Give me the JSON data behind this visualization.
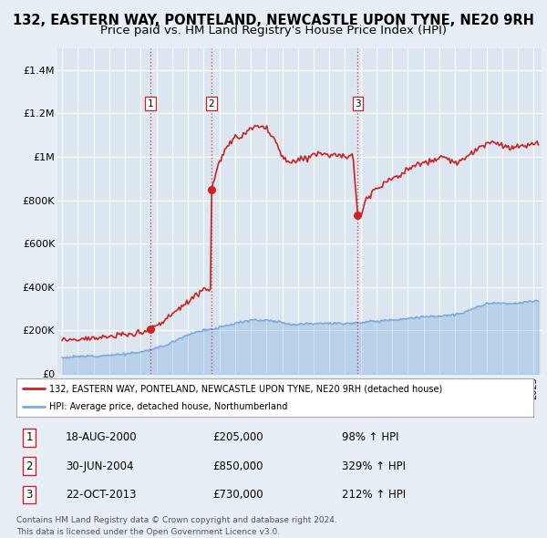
{
  "title": "132, EASTERN WAY, PONTELAND, NEWCASTLE UPON TYNE, NE20 9RH",
  "subtitle": "Price paid vs. HM Land Registry's House Price Index (HPI)",
  "title_fontsize": 10.5,
  "subtitle_fontsize": 9.5,
  "ylim": [
    0,
    1500000
  ],
  "yticks": [
    0,
    200000,
    400000,
    600000,
    800000,
    1000000,
    1200000,
    1400000
  ],
  "ytick_labels": [
    "£0",
    "£200K",
    "£400K",
    "£600K",
    "£800K",
    "£1M",
    "£1.2M",
    "£1.4M"
  ],
  "xlim_start": 1994.7,
  "xlim_end": 2025.5,
  "hpi_color": "#7aaadd",
  "hpi_fill_alpha": 0.35,
  "price_color": "#cc2222",
  "sale_marker_color": "#cc2222",
  "dashed_line_color": "#cc2222",
  "background_color": "#e8eef5",
  "plot_bg_color": "#dce6f0",
  "legend_box_color": "#ffffff",
  "legend_border_color": "#aaaaaa",
  "sales": [
    {
      "date": 2000.63,
      "price": 205000,
      "label": "1"
    },
    {
      "date": 2004.5,
      "price": 850000,
      "label": "2"
    },
    {
      "date": 2013.81,
      "price": 730000,
      "label": "3"
    }
  ],
  "sale_table": [
    {
      "num": "1",
      "date": "18-AUG-2000",
      "price": "£205,000",
      "pct": "98% ↑ HPI"
    },
    {
      "num": "2",
      "date": "30-JUN-2004",
      "price": "£850,000",
      "pct": "329% ↑ HPI"
    },
    {
      "num": "3",
      "date": "22-OCT-2013",
      "price": "£730,000",
      "pct": "212% ↑ HPI"
    }
  ],
  "legend_line1": "132, EASTERN WAY, PONTELAND, NEWCASTLE UPON TYNE, NE20 9RH (detached house)",
  "legend_line2": "HPI: Average price, detached house, Northumberland",
  "footer1": "Contains HM Land Registry data © Crown copyright and database right 2024.",
  "footer2": "This data is licensed under the Open Government Licence v3.0."
}
